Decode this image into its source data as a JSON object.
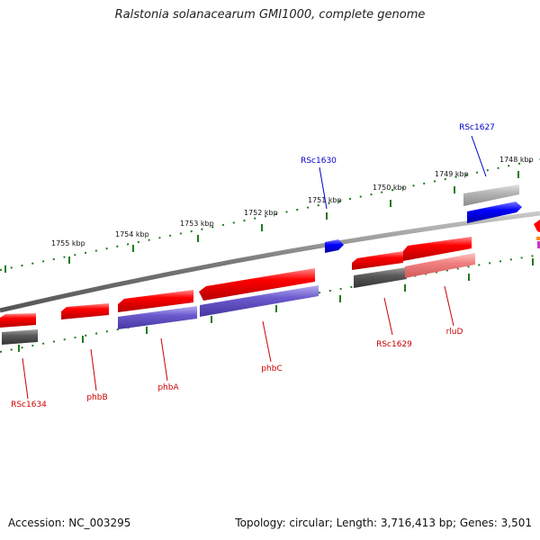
{
  "header": {
    "title": "Ralstonia solanacearum GMI1000, complete genome"
  },
  "footer": {
    "accession": "Accession: NC_003295",
    "summary": "Topology: circular; Length: 3,716,413 bp; Genes: 3,501"
  },
  "colors": {
    "backbone": "#7a7a7a",
    "tick": "#1f7a1f",
    "gene_red": "#ff0000",
    "gene_light_red": "#f08080",
    "gene_blue": "#0000ff",
    "gene_purple": "#6a5acd",
    "gene_dark_gray": "#555555",
    "gene_light_gray": "#b4b4b4",
    "label_red": "#cc0000",
    "label_blue": "#0000cc"
  },
  "scale_labels": [
    "1755 kbp",
    "1754 kbp",
    "1753 kbp",
    "1752 kbp",
    "1751 kbp",
    "1750 kbp",
    "1749 kbp",
    "1748 kbp"
  ],
  "gene_labels": {
    "rsc1627": "RSc1627",
    "rsc1630": "RSc1630",
    "rsc1629": "RSc1629",
    "rlud": "rluD",
    "phbc": "phbC",
    "phba": "phbA",
    "phbb": "phbB",
    "rsc1634": "RSc1634"
  }
}
